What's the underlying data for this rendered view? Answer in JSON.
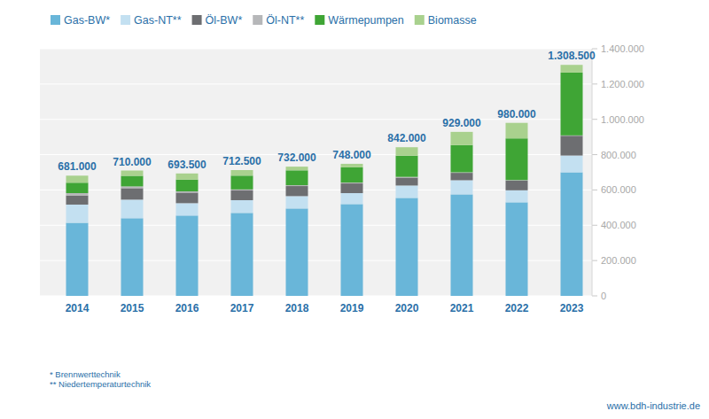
{
  "chart_data": {
    "type": "bar",
    "stacked": true,
    "grid": true,
    "legend": "top-left",
    "categories": [
      "2014",
      "2015",
      "2016",
      "2017",
      "2018",
      "2019",
      "2020",
      "2021",
      "2022",
      "2023"
    ],
    "series": [
      {
        "name": "Gas-BW*",
        "color": "#69b6d9",
        "values": [
          414000,
          440000,
          455000,
          470000,
          495000,
          520000,
          555000,
          575000,
          530000,
          700000
        ]
      },
      {
        "name": "Gas-NT**",
        "color": "#c3e0f1",
        "values": [
          103000,
          105000,
          70000,
          72000,
          70000,
          62000,
          70000,
          80000,
          68000,
          95000
        ]
      },
      {
        "name": "Öl-BW*",
        "color": "#6d6e71",
        "values": [
          52000,
          65000,
          60000,
          55000,
          57000,
          55000,
          45000,
          42000,
          55000,
          112000
        ]
      },
      {
        "name": "Öl-NT**",
        "color": "#b6b7b9",
        "values": [
          13000,
          10000,
          7000,
          6000,
          5000,
          5000,
          4000,
          3000,
          3000,
          2000
        ]
      },
      {
        "name": "Wärmepumpen",
        "color": "#3fa535",
        "values": [
          59000,
          60000,
          67000,
          78000,
          84000,
          86000,
          120000,
          154000,
          236000,
          356000
        ]
      },
      {
        "name": "Biomasse",
        "color": "#a9d18e",
        "values": [
          40000,
          30000,
          34500,
          31500,
          21000,
          20000,
          48000,
          75000,
          88000,
          43500
        ]
      }
    ],
    "totals": {
      "values": [
        681000,
        710000,
        693500,
        712500,
        732000,
        748000,
        842000,
        929000,
        980000,
        1308500
      ],
      "value_labels": [
        "681.000",
        "710.000",
        "693.500",
        "712.500",
        "732.000",
        "748.000",
        "842.000",
        "929.000",
        "980.000",
        "1.308.500"
      ]
    },
    "ylim": [
      0,
      1400000
    ],
    "yticks": [
      0,
      {
        "value": 200000,
        "label": "200.000"
      },
      {
        "value": 400000,
        "label": "400.000"
      },
      {
        "value": 600000,
        "label": "600.000"
      },
      {
        "value": 800000,
        "label": "800.000"
      },
      {
        "value": 1000000,
        "label": "1.000.000"
      },
      {
        "value": 1200000,
        "label": "1.200.000"
      },
      {
        "value": 1400000,
        "label": "1.400.000"
      }
    ],
    "footnotes": [
      "* Brennwerttechnik",
      "** Niedertemperaturtechnik"
    ],
    "source": "www.bdh-industrie.de"
  }
}
